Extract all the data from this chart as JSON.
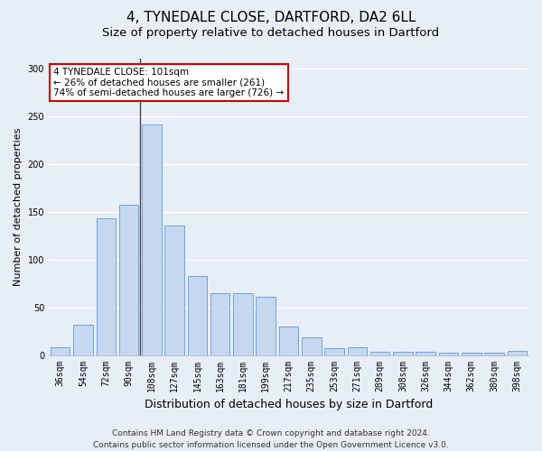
{
  "title": "4, TYNEDALE CLOSE, DARTFORD, DA2 6LL",
  "subtitle": "Size of property relative to detached houses in Dartford",
  "xlabel": "Distribution of detached houses by size in Dartford",
  "ylabel": "Number of detached properties",
  "categories": [
    "36sqm",
    "54sqm",
    "72sqm",
    "90sqm",
    "108sqm",
    "127sqm",
    "145sqm",
    "163sqm",
    "181sqm",
    "199sqm",
    "217sqm",
    "235sqm",
    "253sqm",
    "271sqm",
    "289sqm",
    "308sqm",
    "326sqm",
    "344sqm",
    "362sqm",
    "380sqm",
    "398sqm"
  ],
  "values": [
    8,
    32,
    143,
    157,
    241,
    135,
    83,
    65,
    65,
    61,
    30,
    18,
    7,
    8,
    3,
    3,
    3,
    2,
    2,
    2,
    4
  ],
  "bar_color": "#c5d8f0",
  "bar_edge_color": "#5b9bd5",
  "highlight_bar_index": 4,
  "ylim": [
    0,
    310
  ],
  "yticks": [
    0,
    50,
    100,
    150,
    200,
    250,
    300
  ],
  "annotation_text": "4 TYNEDALE CLOSE: 101sqm\n← 26% of detached houses are smaller (261)\n74% of semi-detached houses are larger (726) →",
  "annotation_box_color": "#ffffff",
  "annotation_border_color": "#cc0000",
  "footer_line1": "Contains HM Land Registry data © Crown copyright and database right 2024.",
  "footer_line2": "Contains public sector information licensed under the Open Government Licence v3.0.",
  "bg_color": "#e8eef7",
  "plot_bg_color": "#e8eef7",
  "grid_color": "#ffffff",
  "title_fontsize": 11,
  "subtitle_fontsize": 9.5,
  "xlabel_fontsize": 9,
  "ylabel_fontsize": 8,
  "tick_fontsize": 7,
  "annotation_fontsize": 7.5,
  "footer_fontsize": 6.5
}
